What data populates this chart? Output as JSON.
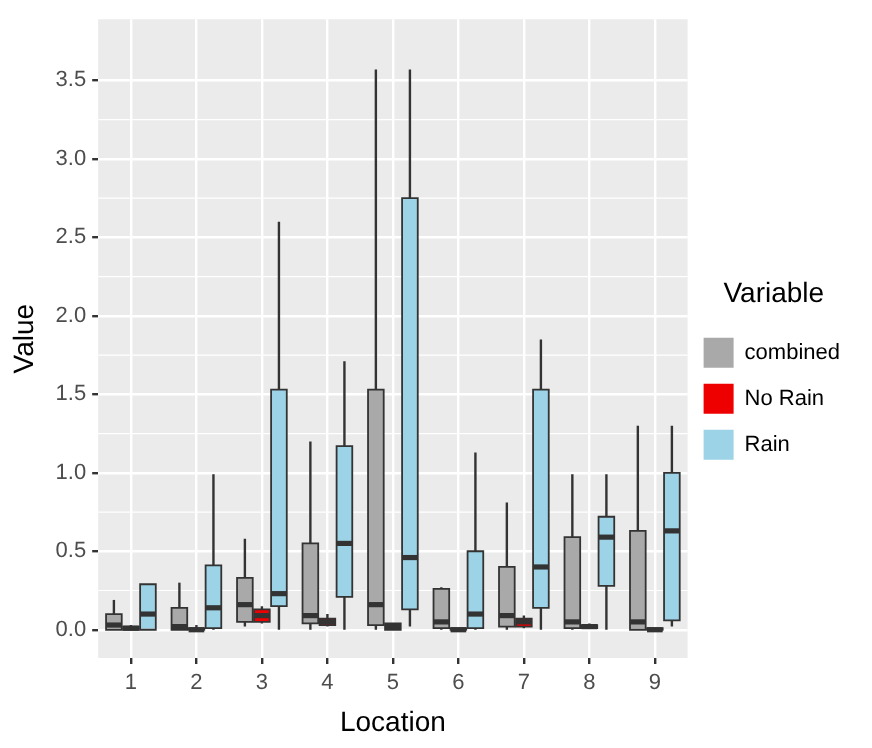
{
  "chart_data": {
    "type": "box",
    "xlabel": "Location",
    "ylabel": "Value",
    "legend_title": "Variable",
    "legend": "right",
    "grid": true,
    "categories": [
      "1",
      "2",
      "3",
      "4",
      "5",
      "6",
      "7",
      "8",
      "9"
    ],
    "ylim": [
      -0.18,
      3.89
    ],
    "yticks": [
      {
        "value": 0,
        "label": "0.0"
      },
      {
        "value": 0.5,
        "label": "0.5"
      },
      {
        "value": 1,
        "label": "1.0"
      },
      {
        "value": 1.5,
        "label": "1.5"
      },
      {
        "value": 2,
        "label": "2.0"
      },
      {
        "value": 2.5,
        "label": "2.5"
      },
      {
        "value": 3,
        "label": "3.0"
      },
      {
        "value": 3.5,
        "label": "3.5"
      }
    ],
    "series": [
      {
        "name": "combined",
        "color": "#a9a9a9",
        "boxes": [
          {
            "low": 0,
            "q1": 0,
            "median": 0.03,
            "q3": 0.1,
            "high": 0.19
          },
          {
            "low": 0,
            "q1": 0,
            "median": 0.02,
            "q3": 0.14,
            "high": 0.3
          },
          {
            "low": 0.02,
            "q1": 0.05,
            "median": 0.16,
            "q3": 0.33,
            "high": 0.58
          },
          {
            "low": 0,
            "q1": 0.04,
            "median": 0.09,
            "q3": 0.55,
            "high": 1.2
          },
          {
            "low": 0,
            "q1": 0.03,
            "median": 0.16,
            "q3": 1.53,
            "high": 3.57
          },
          {
            "low": 0,
            "q1": 0.01,
            "median": 0.05,
            "q3": 0.26,
            "high": 0.27
          },
          {
            "low": 0,
            "q1": 0.02,
            "median": 0.09,
            "q3": 0.4,
            "high": 0.81
          },
          {
            "low": 0,
            "q1": 0.01,
            "median": 0.05,
            "q3": 0.59,
            "high": 0.99
          },
          {
            "low": 0,
            "q1": 0,
            "median": 0.05,
            "q3": 0.63,
            "high": 1.3
          }
        ]
      },
      {
        "name": "No Rain",
        "color": "#ee0000",
        "boxes": [
          {
            "low": 0,
            "q1": 0,
            "median": 0.01,
            "q3": 0.02,
            "high": 0.03
          },
          {
            "low": 0,
            "q1": 0,
            "median": 0,
            "q3": 0.01,
            "high": 0.03
          },
          {
            "low": 0.04,
            "q1": 0.05,
            "median": 0.09,
            "q3": 0.13,
            "high": 0.15
          },
          {
            "low": 0.02,
            "q1": 0.03,
            "median": 0.05,
            "q3": 0.07,
            "high": 0.1
          },
          {
            "low": 0,
            "q1": 0,
            "median": 0.02,
            "q3": 0.04,
            "high": 0.04
          },
          {
            "low": 0,
            "q1": 0,
            "median": 0,
            "q3": 0.01,
            "high": 0.01
          },
          {
            "low": 0.01,
            "q1": 0.02,
            "median": 0.05,
            "q3": 0.07,
            "high": 0.09
          },
          {
            "low": 0.01,
            "q1": 0.01,
            "median": 0.02,
            "q3": 0.03,
            "high": 0.04
          },
          {
            "low": 0,
            "q1": 0,
            "median": 0,
            "q3": 0.01,
            "high": 0.01
          }
        ]
      },
      {
        "name": "Rain",
        "color": "#9dd3e6",
        "boxes": [
          {
            "low": 0,
            "q1": 0,
            "median": 0.1,
            "q3": 0.29,
            "high": 0.29
          },
          {
            "low": 0,
            "q1": 0.01,
            "median": 0.14,
            "q3": 0.41,
            "high": 0.99
          },
          {
            "low": 0,
            "q1": 0.15,
            "median": 0.23,
            "q3": 1.53,
            "high": 2.6
          },
          {
            "low": 0,
            "q1": 0.21,
            "median": 0.55,
            "q3": 1.17,
            "high": 1.71
          },
          {
            "low": 0.02,
            "q1": 0.13,
            "median": 0.46,
            "q3": 2.75,
            "high": 3.57
          },
          {
            "low": 0,
            "q1": 0.01,
            "median": 0.1,
            "q3": 0.5,
            "high": 1.13
          },
          {
            "low": 0,
            "q1": 0.14,
            "median": 0.4,
            "q3": 1.53,
            "high": 1.85
          },
          {
            "low": 0,
            "q1": 0.28,
            "median": 0.59,
            "q3": 0.72,
            "high": 0.99
          },
          {
            "low": 0.02,
            "q1": 0.06,
            "median": 0.63,
            "q3": 1,
            "high": 1.3
          }
        ]
      }
    ]
  }
}
